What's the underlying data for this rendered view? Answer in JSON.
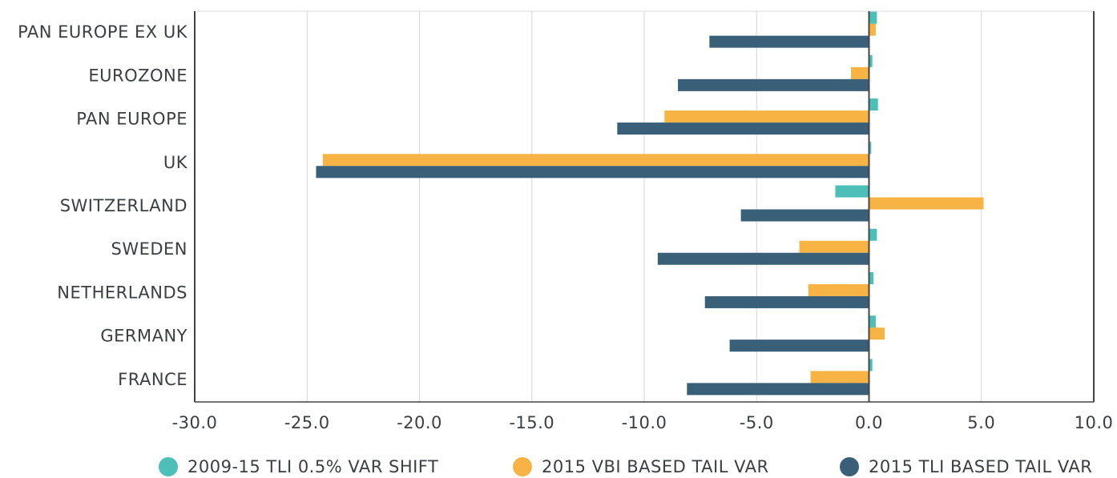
{
  "chart_data": {
    "type": "barh",
    "categories": [
      "PAN EUROPE EX UK",
      "EUROZONE",
      "PAN EUROPE",
      "UK",
      "SWITZERLAND",
      "SWEDEN",
      "NETHERLANDS",
      "GERMANY",
      "FRANCE"
    ],
    "series": [
      {
        "name": "2009-15 TLI 0.5% VAR SHIFT",
        "color": "#4bbfb8",
        "values": [
          0.35,
          0.15,
          0.4,
          0.1,
          -1.5,
          0.35,
          0.2,
          0.3,
          0.15
        ]
      },
      {
        "name": "2015 VBI BASED TAIL VAR",
        "color": "#f7b444",
        "values": [
          0.3,
          -0.8,
          -9.1,
          -24.3,
          5.1,
          -3.1,
          -2.7,
          0.7,
          -2.6
        ]
      },
      {
        "name": "2015 TLI BASED TAIL VAR",
        "color": "#3a5f78",
        "values": [
          -7.1,
          -8.5,
          -11.2,
          -24.6,
          -5.7,
          -9.4,
          -7.3,
          -6.2,
          -8.1
        ]
      }
    ],
    "xlim": [
      -30,
      10
    ],
    "xticks": [
      {
        "value": -30,
        "label": "-30.0"
      },
      {
        "value": -25,
        "label": "-25.0"
      },
      {
        "value": -20,
        "label": "-20.0"
      },
      {
        "value": -15,
        "label": "-15.0"
      },
      {
        "value": -10,
        "label": "-10.0"
      },
      {
        "value": -5,
        "label": "-5.0"
      },
      {
        "value": 0,
        "label": "0.0"
      },
      {
        "value": 5,
        "label": "5.0"
      },
      {
        "value": 10,
        "label": "10.0"
      }
    ],
    "grid": true,
    "legend": "bottom"
  }
}
